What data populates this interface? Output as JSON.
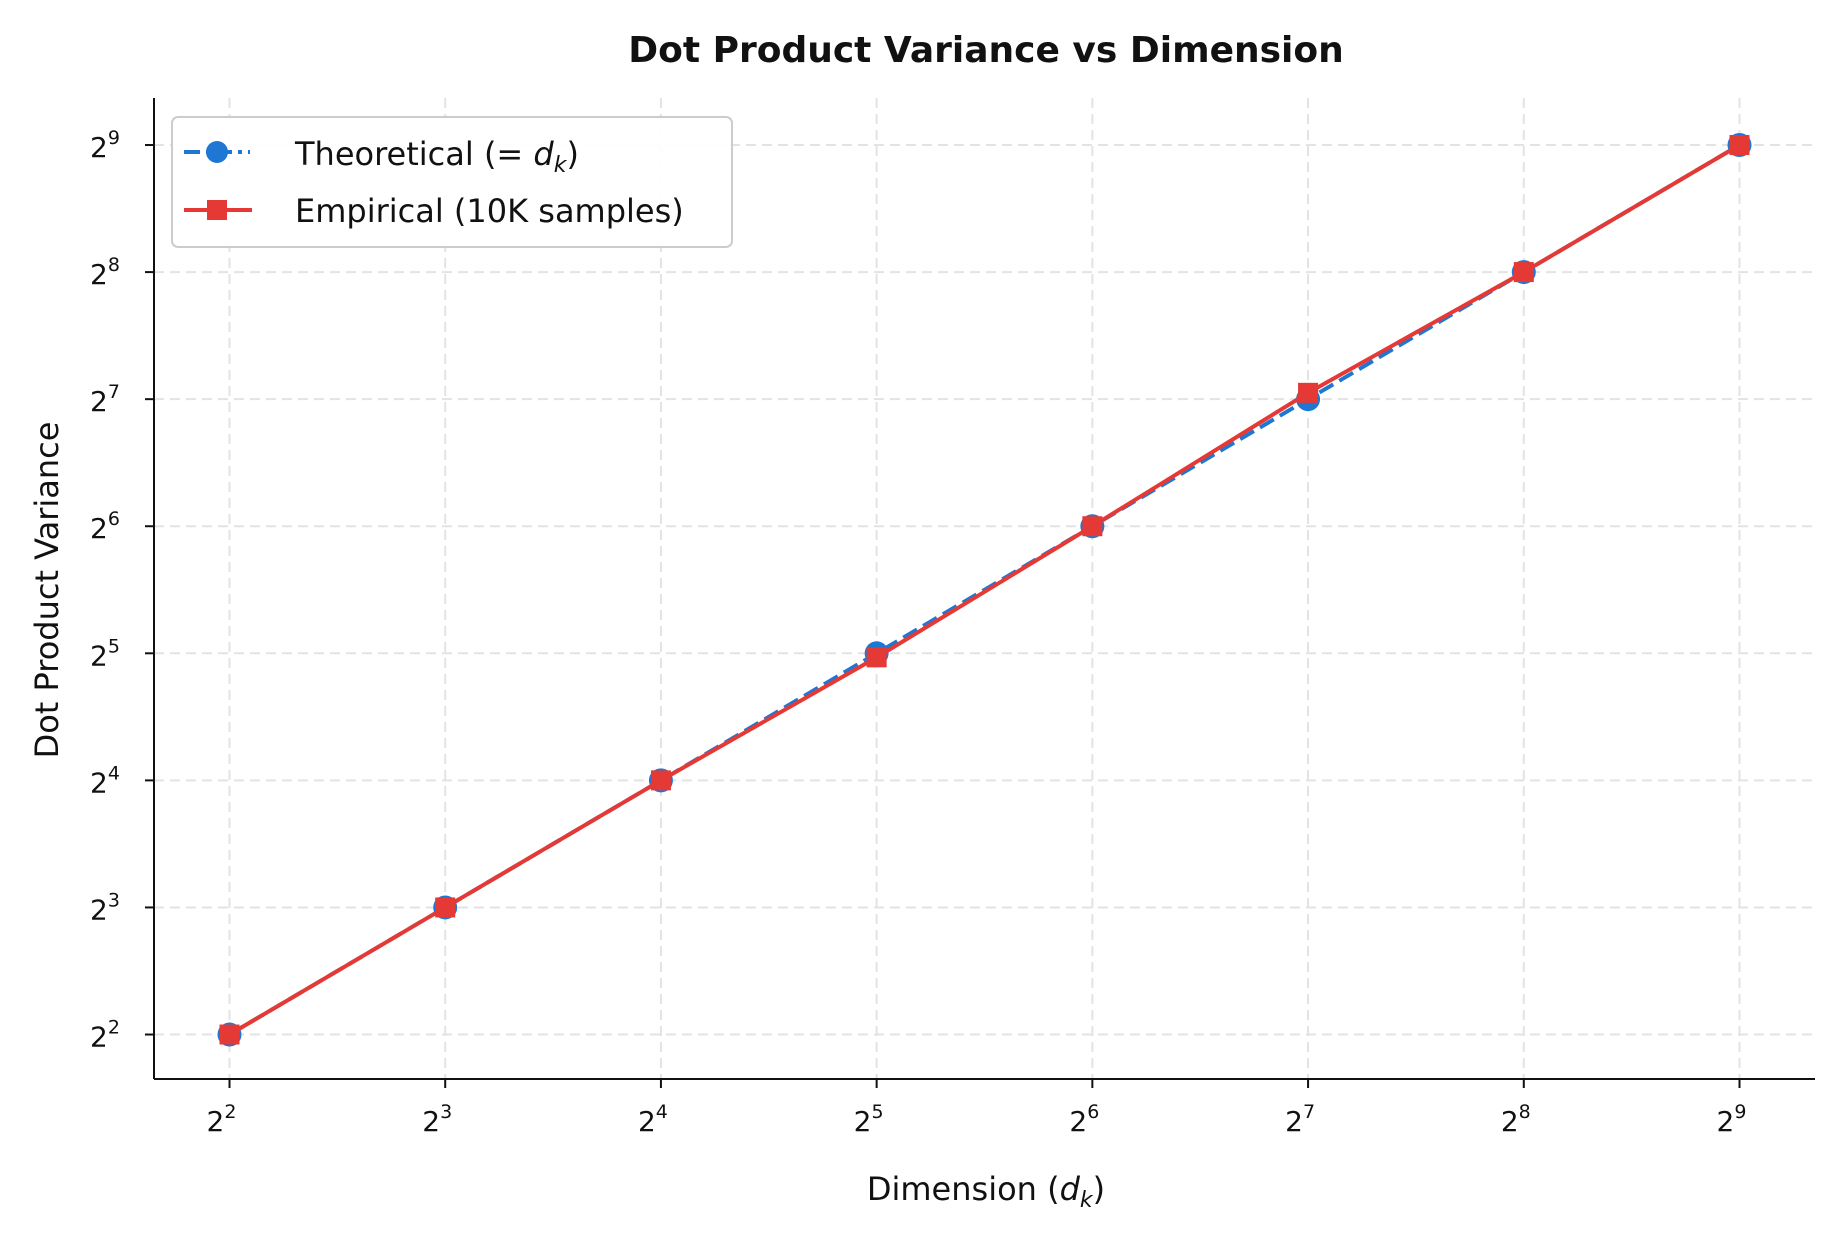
{
  "chart_data": {
    "type": "line",
    "title": "Dot Product Variance vs Dimension",
    "xlabel": "Dimension (d_k)",
    "ylabel": "Dot Product Variance",
    "xscale": "log2",
    "yscale": "log2",
    "x": [
      4,
      8,
      16,
      32,
      64,
      128,
      256,
      512
    ],
    "xlim_exp": [
      1.65,
      9.35
    ],
    "ylim_exp": [
      1.65,
      9.37
    ],
    "xticks": [
      2,
      3,
      4,
      5,
      6,
      7,
      8,
      9
    ],
    "yticks": [
      2,
      3,
      4,
      5,
      6,
      7,
      8,
      9
    ],
    "tick_base": "2",
    "grid": true,
    "legend_position": "top-left",
    "series": [
      {
        "name": "Theoretical (= d_k)",
        "name_main": "Theoretical (= ",
        "name_var": "d",
        "name_sub": "k",
        "name_end": ")",
        "values": [
          4,
          8,
          16,
          32,
          64,
          128,
          256,
          512
        ],
        "color": "#1f77d4",
        "marker": "circle",
        "linestyle": "dashed"
      },
      {
        "name": "Empirical (10K samples)",
        "values": [
          4.0,
          8.0,
          16.0,
          31.3,
          64.0,
          132.5,
          256,
          512
        ],
        "color": "#e53935",
        "marker": "square",
        "linestyle": "solid"
      }
    ]
  }
}
